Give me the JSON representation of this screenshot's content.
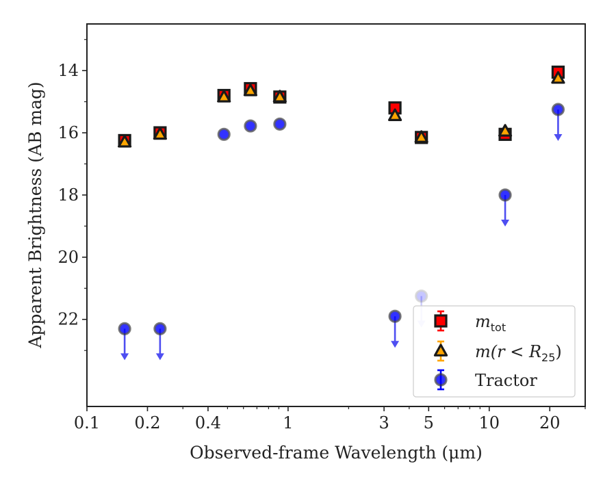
{
  "chart_data": {
    "type": "scatter",
    "xlabel": "Observed-frame Wavelength (μm)",
    "ylabel": "Apparent Brightness (AB mag)",
    "xscale": "log",
    "xlim": [
      0.1,
      30
    ],
    "ylim": [
      24.8,
      12.5
    ],
    "y_inverted": true,
    "grid": false,
    "legend_position": "lower-right",
    "xticks": [
      0.1,
      0.2,
      0.4,
      1,
      3,
      5,
      10,
      20
    ],
    "xtick_labels": [
      "0.1",
      "0.2",
      "0.4",
      "1",
      "3",
      "5",
      "10",
      "20"
    ],
    "yticks": [
      14,
      16,
      18,
      20,
      22
    ],
    "ytick_labels": [
      "14",
      "16",
      "18",
      "20",
      "22"
    ],
    "series": [
      {
        "name": "m_tot",
        "legend_main": "m",
        "legend_sub": "tot",
        "marker": "square",
        "color": "#ff0000",
        "edge": "#1a1a1a",
        "points": [
          {
            "x": 0.154,
            "y": 16.25
          },
          {
            "x": 0.231,
            "y": 16.0
          },
          {
            "x": 0.48,
            "y": 14.8
          },
          {
            "x": 0.65,
            "y": 14.58
          },
          {
            "x": 0.91,
            "y": 14.85
          },
          {
            "x": 3.4,
            "y": 15.2
          },
          {
            "x": 4.6,
            "y": 16.15
          },
          {
            "x": 12.0,
            "y": 16.05
          },
          {
            "x": 22.0,
            "y": 14.05
          }
        ]
      },
      {
        "name": "m(r<R25)",
        "legend_main": "m(r < R",
        "legend_sub": "25",
        "legend_close": ")",
        "marker": "triangle",
        "color": "#ffa500",
        "edge": "#1a1a1a",
        "points": [
          {
            "x": 0.154,
            "y": 16.3
          },
          {
            "x": 0.231,
            "y": 16.05
          },
          {
            "x": 0.48,
            "y": 14.85
          },
          {
            "x": 0.65,
            "y": 14.65
          },
          {
            "x": 0.91,
            "y": 14.85
          },
          {
            "x": 3.4,
            "y": 15.45
          },
          {
            "x": 4.6,
            "y": 16.15
          },
          {
            "x": 12.0,
            "y": 15.95
          },
          {
            "x": 22.0,
            "y": 14.25
          }
        ]
      },
      {
        "name": "Tractor",
        "legend_label": "Tractor",
        "marker": "circle",
        "color": "#0000ff",
        "edge": "#333333",
        "points": [
          {
            "x": 0.154,
            "y": 22.3,
            "upper_limit": true
          },
          {
            "x": 0.231,
            "y": 22.3,
            "upper_limit": true
          },
          {
            "x": 0.48,
            "y": 16.05
          },
          {
            "x": 0.65,
            "y": 15.78
          },
          {
            "x": 0.91,
            "y": 15.72
          },
          {
            "x": 3.4,
            "y": 21.9,
            "upper_limit": true
          },
          {
            "x": 4.6,
            "y": 21.25,
            "upper_limit": true,
            "faded": true
          },
          {
            "x": 12.0,
            "y": 18.0,
            "upper_limit": true
          },
          {
            "x": 22.0,
            "y": 15.25,
            "upper_limit": true
          }
        ]
      }
    ]
  }
}
